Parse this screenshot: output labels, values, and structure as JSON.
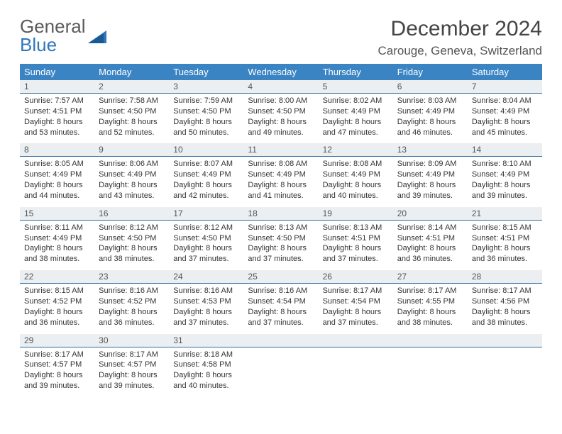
{
  "logo": {
    "text_general": "General",
    "text_blue": "Blue"
  },
  "header": {
    "month_year": "December 2024",
    "location": "Carouge, Geneva, Switzerland"
  },
  "weekdays": [
    "Sunday",
    "Monday",
    "Tuesday",
    "Wednesday",
    "Thursday",
    "Friday",
    "Saturday"
  ],
  "colors": {
    "header_bar": "#3b84c4",
    "daynum_bg": "#ebeff2",
    "daynum_border": "#2f6aa3",
    "logo_blue": "#2f77bb"
  },
  "weeks": [
    {
      "days": [
        {
          "num": "1",
          "sunrise": "Sunrise: 7:57 AM",
          "sunset": "Sunset: 4:51 PM",
          "dl1": "Daylight: 8 hours",
          "dl2": "and 53 minutes."
        },
        {
          "num": "2",
          "sunrise": "Sunrise: 7:58 AM",
          "sunset": "Sunset: 4:50 PM",
          "dl1": "Daylight: 8 hours",
          "dl2": "and 52 minutes."
        },
        {
          "num": "3",
          "sunrise": "Sunrise: 7:59 AM",
          "sunset": "Sunset: 4:50 PM",
          "dl1": "Daylight: 8 hours",
          "dl2": "and 50 minutes."
        },
        {
          "num": "4",
          "sunrise": "Sunrise: 8:00 AM",
          "sunset": "Sunset: 4:50 PM",
          "dl1": "Daylight: 8 hours",
          "dl2": "and 49 minutes."
        },
        {
          "num": "5",
          "sunrise": "Sunrise: 8:02 AM",
          "sunset": "Sunset: 4:49 PM",
          "dl1": "Daylight: 8 hours",
          "dl2": "and 47 minutes."
        },
        {
          "num": "6",
          "sunrise": "Sunrise: 8:03 AM",
          "sunset": "Sunset: 4:49 PM",
          "dl1": "Daylight: 8 hours",
          "dl2": "and 46 minutes."
        },
        {
          "num": "7",
          "sunrise": "Sunrise: 8:04 AM",
          "sunset": "Sunset: 4:49 PM",
          "dl1": "Daylight: 8 hours",
          "dl2": "and 45 minutes."
        }
      ]
    },
    {
      "days": [
        {
          "num": "8",
          "sunrise": "Sunrise: 8:05 AM",
          "sunset": "Sunset: 4:49 PM",
          "dl1": "Daylight: 8 hours",
          "dl2": "and 44 minutes."
        },
        {
          "num": "9",
          "sunrise": "Sunrise: 8:06 AM",
          "sunset": "Sunset: 4:49 PM",
          "dl1": "Daylight: 8 hours",
          "dl2": "and 43 minutes."
        },
        {
          "num": "10",
          "sunrise": "Sunrise: 8:07 AM",
          "sunset": "Sunset: 4:49 PM",
          "dl1": "Daylight: 8 hours",
          "dl2": "and 42 minutes."
        },
        {
          "num": "11",
          "sunrise": "Sunrise: 8:08 AM",
          "sunset": "Sunset: 4:49 PM",
          "dl1": "Daylight: 8 hours",
          "dl2": "and 41 minutes."
        },
        {
          "num": "12",
          "sunrise": "Sunrise: 8:08 AM",
          "sunset": "Sunset: 4:49 PM",
          "dl1": "Daylight: 8 hours",
          "dl2": "and 40 minutes."
        },
        {
          "num": "13",
          "sunrise": "Sunrise: 8:09 AM",
          "sunset": "Sunset: 4:49 PM",
          "dl1": "Daylight: 8 hours",
          "dl2": "and 39 minutes."
        },
        {
          "num": "14",
          "sunrise": "Sunrise: 8:10 AM",
          "sunset": "Sunset: 4:49 PM",
          "dl1": "Daylight: 8 hours",
          "dl2": "and 39 minutes."
        }
      ]
    },
    {
      "days": [
        {
          "num": "15",
          "sunrise": "Sunrise: 8:11 AM",
          "sunset": "Sunset: 4:49 PM",
          "dl1": "Daylight: 8 hours",
          "dl2": "and 38 minutes."
        },
        {
          "num": "16",
          "sunrise": "Sunrise: 8:12 AM",
          "sunset": "Sunset: 4:50 PM",
          "dl1": "Daylight: 8 hours",
          "dl2": "and 38 minutes."
        },
        {
          "num": "17",
          "sunrise": "Sunrise: 8:12 AM",
          "sunset": "Sunset: 4:50 PM",
          "dl1": "Daylight: 8 hours",
          "dl2": "and 37 minutes."
        },
        {
          "num": "18",
          "sunrise": "Sunrise: 8:13 AM",
          "sunset": "Sunset: 4:50 PM",
          "dl1": "Daylight: 8 hours",
          "dl2": "and 37 minutes."
        },
        {
          "num": "19",
          "sunrise": "Sunrise: 8:13 AM",
          "sunset": "Sunset: 4:51 PM",
          "dl1": "Daylight: 8 hours",
          "dl2": "and 37 minutes."
        },
        {
          "num": "20",
          "sunrise": "Sunrise: 8:14 AM",
          "sunset": "Sunset: 4:51 PM",
          "dl1": "Daylight: 8 hours",
          "dl2": "and 36 minutes."
        },
        {
          "num": "21",
          "sunrise": "Sunrise: 8:15 AM",
          "sunset": "Sunset: 4:51 PM",
          "dl1": "Daylight: 8 hours",
          "dl2": "and 36 minutes."
        }
      ]
    },
    {
      "days": [
        {
          "num": "22",
          "sunrise": "Sunrise: 8:15 AM",
          "sunset": "Sunset: 4:52 PM",
          "dl1": "Daylight: 8 hours",
          "dl2": "and 36 minutes."
        },
        {
          "num": "23",
          "sunrise": "Sunrise: 8:16 AM",
          "sunset": "Sunset: 4:52 PM",
          "dl1": "Daylight: 8 hours",
          "dl2": "and 36 minutes."
        },
        {
          "num": "24",
          "sunrise": "Sunrise: 8:16 AM",
          "sunset": "Sunset: 4:53 PM",
          "dl1": "Daylight: 8 hours",
          "dl2": "and 37 minutes."
        },
        {
          "num": "25",
          "sunrise": "Sunrise: 8:16 AM",
          "sunset": "Sunset: 4:54 PM",
          "dl1": "Daylight: 8 hours",
          "dl2": "and 37 minutes."
        },
        {
          "num": "26",
          "sunrise": "Sunrise: 8:17 AM",
          "sunset": "Sunset: 4:54 PM",
          "dl1": "Daylight: 8 hours",
          "dl2": "and 37 minutes."
        },
        {
          "num": "27",
          "sunrise": "Sunrise: 8:17 AM",
          "sunset": "Sunset: 4:55 PM",
          "dl1": "Daylight: 8 hours",
          "dl2": "and 38 minutes."
        },
        {
          "num": "28",
          "sunrise": "Sunrise: 8:17 AM",
          "sunset": "Sunset: 4:56 PM",
          "dl1": "Daylight: 8 hours",
          "dl2": "and 38 minutes."
        }
      ]
    },
    {
      "days": [
        {
          "num": "29",
          "sunrise": "Sunrise: 8:17 AM",
          "sunset": "Sunset: 4:57 PM",
          "dl1": "Daylight: 8 hours",
          "dl2": "and 39 minutes."
        },
        {
          "num": "30",
          "sunrise": "Sunrise: 8:17 AM",
          "sunset": "Sunset: 4:57 PM",
          "dl1": "Daylight: 8 hours",
          "dl2": "and 39 minutes."
        },
        {
          "num": "31",
          "sunrise": "Sunrise: 8:18 AM",
          "sunset": "Sunset: 4:58 PM",
          "dl1": "Daylight: 8 hours",
          "dl2": "and 40 minutes."
        },
        {
          "empty": true
        },
        {
          "empty": true
        },
        {
          "empty": true
        },
        {
          "empty": true
        }
      ]
    }
  ]
}
